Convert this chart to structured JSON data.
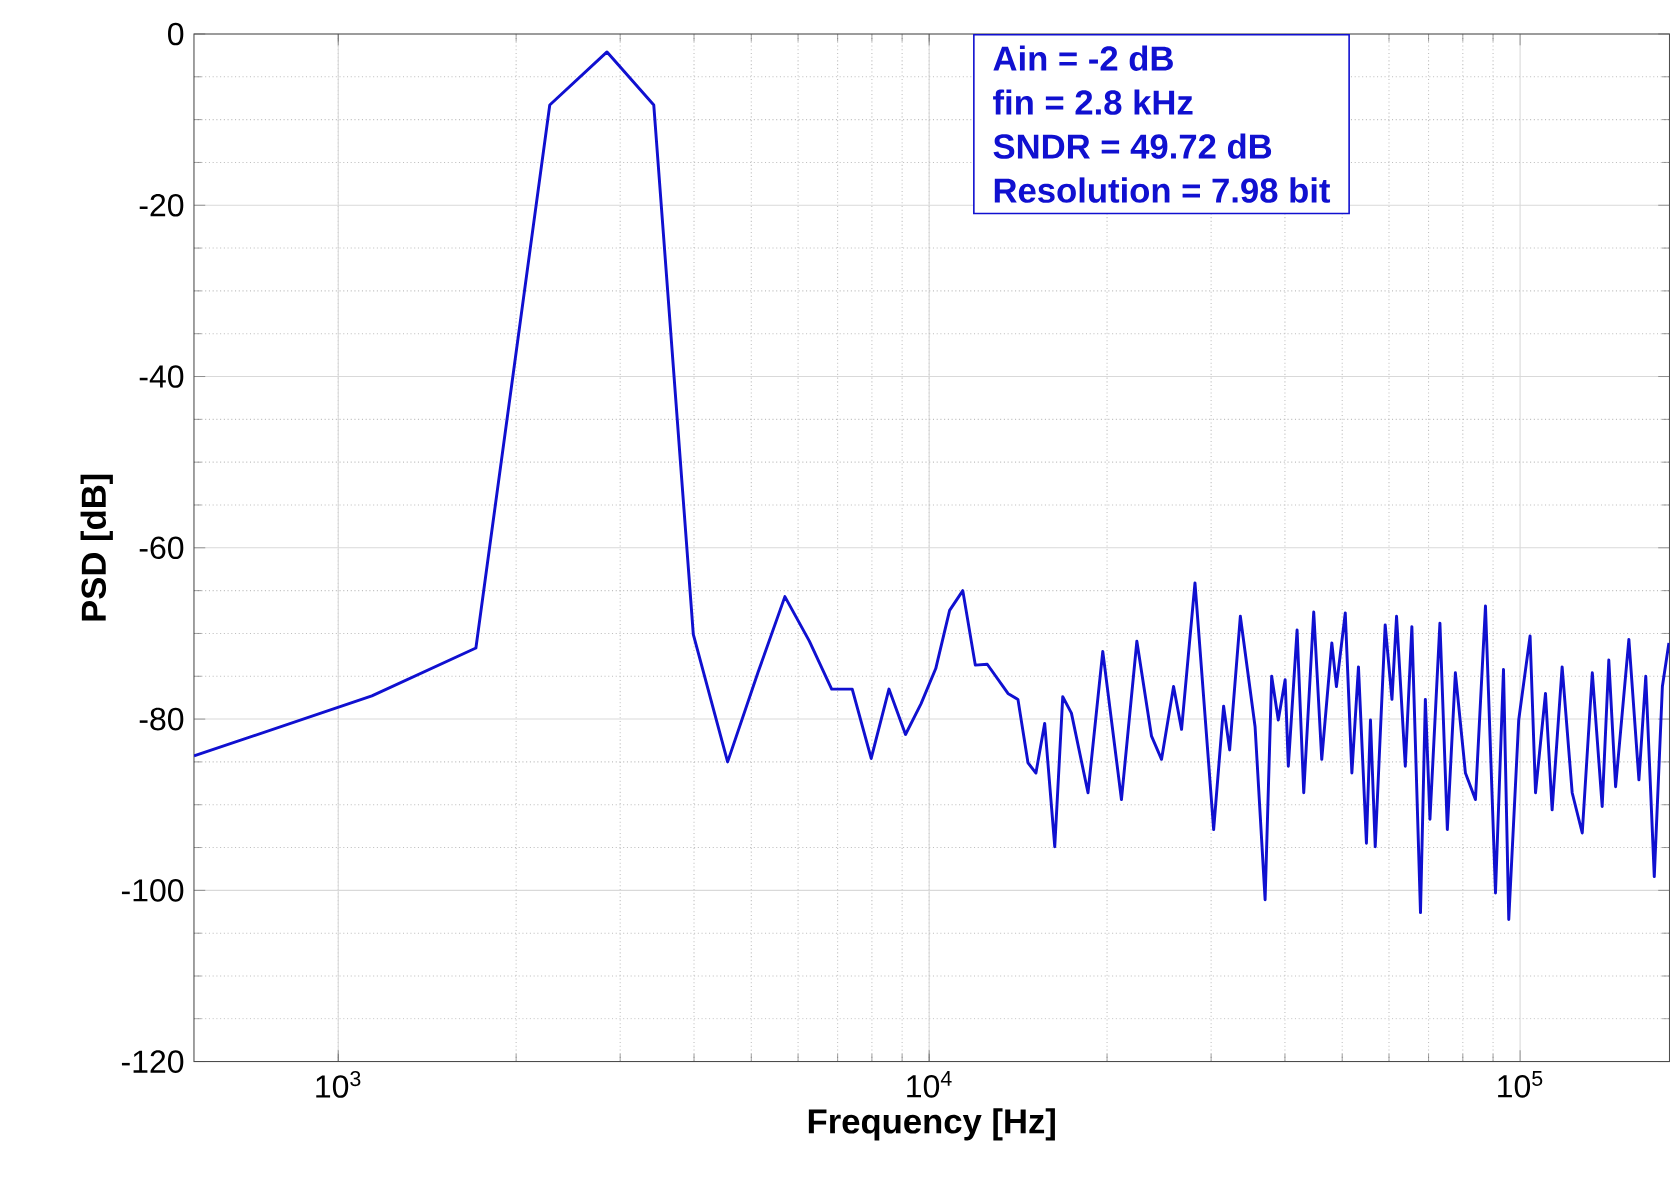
{
  "chart_data": {
    "type": "line",
    "xlabel": "Frequency [Hz]",
    "ylabel": "PSD [dB]",
    "log": "x",
    "grid": true,
    "marker": "none",
    "line_style": "solid",
    "xlim": [
      570,
      179000
    ],
    "ylim": [
      -120,
      0
    ],
    "xticks": [
      {
        "value": 1000,
        "label": "10$^{3}$"
      },
      {
        "value": 10000,
        "label": "10$^{4}$"
      },
      {
        "value": 100000,
        "label": "10$^{5}$"
      }
    ],
    "yticks": [
      -120,
      -100,
      -80,
      -60,
      -40,
      -20,
      0
    ],
    "annotations": [
      "Ain = -2 dB",
      "fin = 2.8 kHz",
      "SNDR = 49.72 dB",
      "Resolution = 7.98 bit"
    ],
    "series": [
      {
        "color": "#1010d0",
        "x": [
          570,
          1140,
          1710,
          2280,
          2850,
          3420,
          3990,
          4560,
          5130,
          5700,
          6270,
          6840,
          7410,
          7980,
          8550,
          9120,
          9690,
          10260,
          10830,
          11400,
          11970,
          12540,
          13594,
          14134,
          14698,
          15160,
          15685,
          16314,
          16829,
          17407,
          18572,
          19672,
          21155,
          22463,
          23784,
          24731,
          25918,
          26738,
          28173,
          30300,
          31500,
          32250,
          33620,
          35610,
          37030,
          37990,
          38980,
          40030,
          40530,
          41940,
          43040,
          44750,
          46170,
          48020,
          48890,
          50600,
          51920,
          53270,
          54950,
          55820,
          56870,
          59120,
          60700,
          61800,
          63940,
          65600,
          67840,
          69140,
          70390,
          73180,
          75330,
          77720,
          80820,
          84030,
          87380,
          90860,
          93740,
          95680,
          99470,
          103970,
          106200,
          110400,
          113300,
          117800,
          122500,
          127400,
          132500,
          137700,
          141300,
          145100,
          152800,
          158900,
          163200,
          168700,
          174100,
          178600
        ],
        "values": [
          -84.3,
          -77.3,
          -71.7,
          -8.3,
          -2.1,
          -8.3,
          -70.1,
          -85.0,
          -74.6,
          -65.7,
          -70.9,
          -76.5,
          -76.5,
          -84.6,
          -76.5,
          -81.8,
          -78.2,
          -74.1,
          -67.3,
          -65.0,
          -73.7,
          -73.6,
          -77.0,
          -77.7,
          -85.1,
          -86.3,
          -80.5,
          -94.9,
          -77.4,
          -79.3,
          -88.6,
          -72.1,
          -89.4,
          -70.9,
          -82.0,
          -84.7,
          -76.2,
          -81.2,
          -64.1,
          -92.9,
          -78.5,
          -83.6,
          -68.0,
          -80.9,
          -101.1,
          -75.0,
          -80.1,
          -75.4,
          -85.5,
          -69.6,
          -88.6,
          -67.5,
          -84.7,
          -71.1,
          -76.2,
          -67.6,
          -86.3,
          -73.9,
          -94.5,
          -80.1,
          -94.9,
          -69.0,
          -77.7,
          -68.0,
          -85.5,
          -69.2,
          -102.6,
          -77.7,
          -91.7,
          -68.8,
          -92.9,
          -74.6,
          -86.3,
          -89.4,
          -66.8,
          -100.3,
          -74.2,
          -103.4,
          -80.1,
          -70.3,
          -88.6,
          -77.0,
          -90.6,
          -73.9,
          -88.6,
          -93.3,
          -74.6,
          -90.2,
          -73.1,
          -87.9,
          -70.7,
          -87.1,
          -75.0,
          -98.4,
          -76.2,
          -71.1
        ]
      }
    ]
  }
}
